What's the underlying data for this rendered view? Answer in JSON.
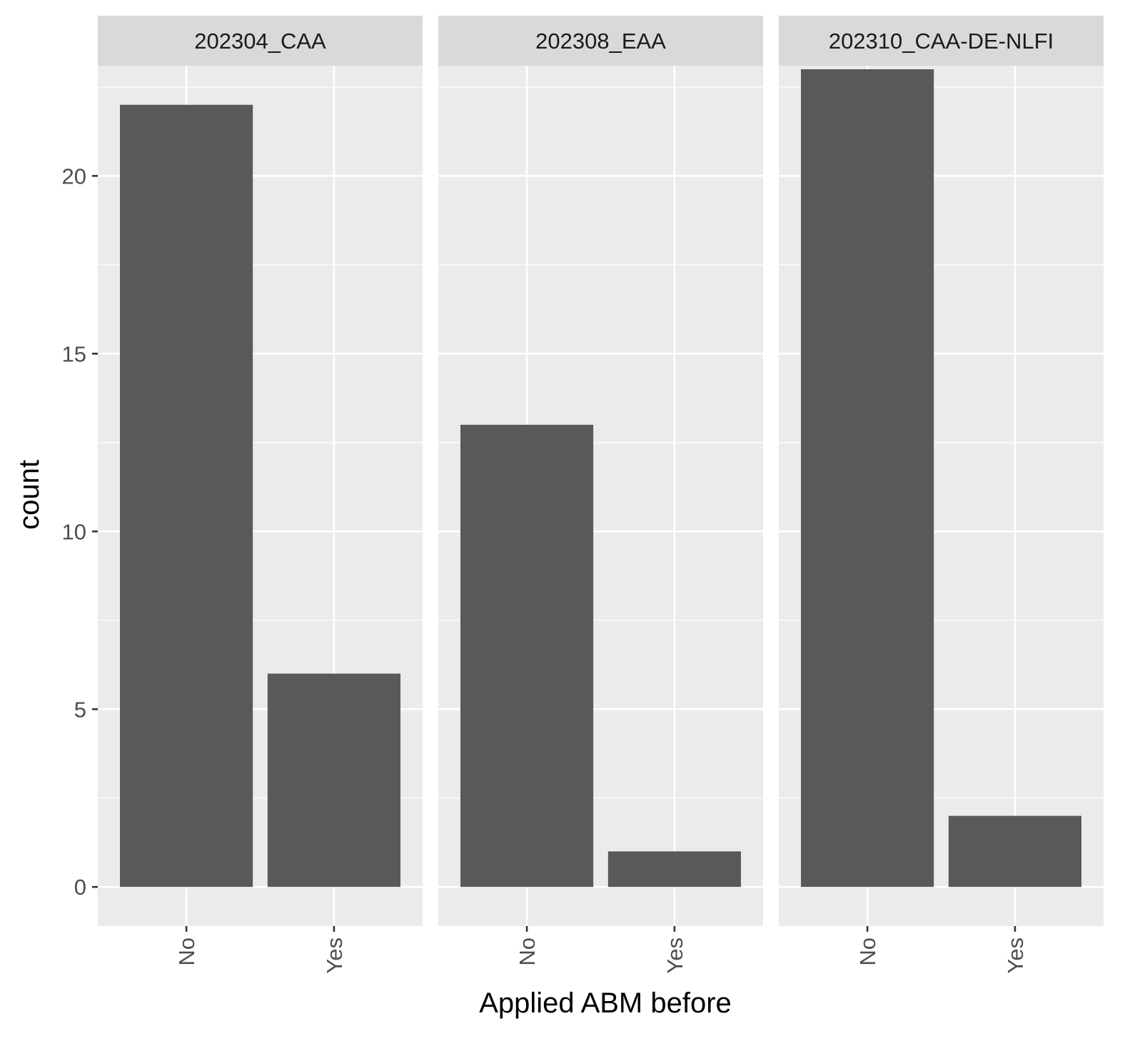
{
  "chart_data": {
    "type": "bar",
    "facet_layout": "columns",
    "xlabel": "Applied ABM before",
    "ylabel": "count",
    "ylim": [
      -1.1,
      23.1
    ],
    "yticks": [
      0,
      5,
      10,
      15,
      20
    ],
    "ytick_labels": [
      "0",
      "5",
      "10",
      "15",
      "20"
    ],
    "grid": true,
    "x_tick_rotation": "vertical",
    "categories": [
      "No",
      "Yes"
    ],
    "facets": [
      {
        "name": "202304_CAA",
        "values": [
          22,
          6
        ]
      },
      {
        "name": "202308_EAA",
        "values": [
          13,
          1
        ]
      },
      {
        "name": "202310_CAA-DE-NLFI",
        "values": [
          23,
          2
        ]
      }
    ],
    "colors": {
      "bar": "#595959",
      "panel_background": "#ebebeb",
      "strip_background": "#d9d9d9",
      "grid": "#ffffff",
      "tick": "#333333"
    }
  }
}
